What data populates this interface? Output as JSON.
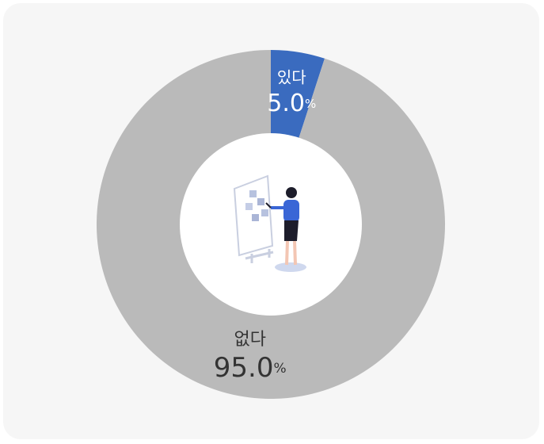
{
  "chart_data": {
    "type": "pie",
    "donut": true,
    "categories": [
      "있다",
      "없다"
    ],
    "values": [
      5.0,
      95.0
    ],
    "value_labels": [
      "5.0%",
      "95.0%"
    ],
    "colors": [
      "#3a6bbf",
      "#bababa"
    ]
  }
}
